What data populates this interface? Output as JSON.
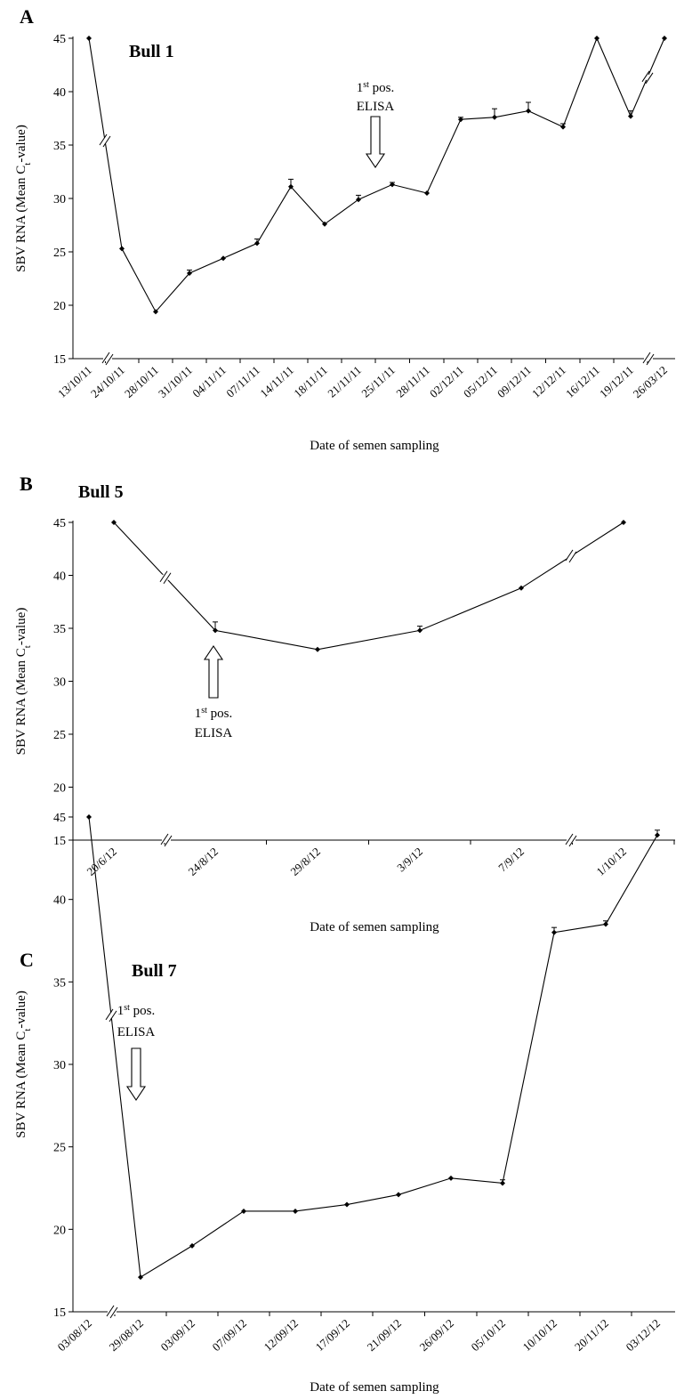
{
  "chart_data": [
    {
      "type": "line",
      "panel_label": "A",
      "title": "Bull 1",
      "xlabel": "Date of semen sampling",
      "ylabel": "SBV RNA (Mean C",
      "ylabel_sub": "t",
      "ylabel_tail": "-value)",
      "ylim": [
        15,
        45
      ],
      "yticks": [
        15,
        20,
        25,
        30,
        35,
        40,
        45
      ],
      "categories": [
        "13/10/11",
        "24/10/11",
        "28/10/11",
        "31/10/11",
        "04/11/11",
        "07/11/11",
        "14/11/11",
        "18/11/11",
        "21/11/11",
        "25/11/11",
        "28/11/11",
        "02/12/11",
        "05/12/11",
        "09/12/11",
        "12/12/11",
        "16/12/11",
        "19/12/11",
        "26/03/12"
      ],
      "values": [
        45,
        25.3,
        19.4,
        23.0,
        24.4,
        25.8,
        31.1,
        27.6,
        29.9,
        31.3,
        30.5,
        37.4,
        37.6,
        38.2,
        36.7,
        45,
        37.7,
        45
      ],
      "errors": [
        0,
        0,
        0,
        0.3,
        0,
        0.4,
        0.7,
        0,
        0.4,
        0.2,
        0,
        0.2,
        0.8,
        0.8,
        0.3,
        0,
        0.5,
        0
      ],
      "annotation": {
        "line1": "1",
        "sup": "st",
        "line1_tail": " pos.",
        "line2": "ELISA",
        "arrow": "down",
        "category": "25/11/11"
      }
    },
    {
      "type": "line",
      "panel_label": "B",
      "title": "Bull 5",
      "xlabel": "Date of semen sampling",
      "ylabel": "SBV RNA (Mean C",
      "ylabel_sub": "t",
      "ylabel_tail": "-value)",
      "ylim": [
        15,
        45
      ],
      "yticks": [
        15,
        20,
        25,
        30,
        35,
        40,
        45
      ],
      "categories": [
        "20/6/12",
        "24/8/12",
        "29/8/12",
        "3/9/12",
        "7/9/12",
        "1/10/12"
      ],
      "values": [
        45,
        34.8,
        33.0,
        34.8,
        38.8,
        45
      ],
      "errors": [
        0,
        0.8,
        0,
        0.4,
        0,
        0
      ],
      "annotation": {
        "line1": "1",
        "sup": "st",
        "line1_tail": " pos.",
        "line2": "ELISA",
        "arrow": "up",
        "category": "24/8/12"
      }
    },
    {
      "type": "line",
      "panel_label": "C",
      "title": "Bull 7",
      "xlabel": "Date of semen sampling",
      "ylabel": "SBV RNA (Mean C",
      "ylabel_sub": "t",
      "ylabel_tail": "-value)",
      "ylim": [
        15,
        45
      ],
      "yticks": [
        15,
        20,
        25,
        30,
        35,
        40,
        45
      ],
      "categories": [
        "03/08/12",
        "29/08/12",
        "03/09/12",
        "07/09/12",
        "12/09/12",
        "17/09/12",
        "21/09/12",
        "26/09/12",
        "05/10/12",
        "10/10/12",
        "20/11/12",
        "03/12/12"
      ],
      "values": [
        45,
        17.1,
        19.0,
        21.1,
        21.1,
        21.5,
        22.1,
        23.1,
        22.8,
        38.0,
        38.5,
        43.9
      ],
      "errors": [
        0,
        0,
        0,
        0,
        0,
        0,
        0,
        0,
        0.2,
        0.3,
        0.2,
        0.3
      ],
      "annotation": {
        "line1": "1",
        "sup": "st",
        "line1_tail": " pos.",
        "line2": "ELISA",
        "arrow": "down",
        "category": "29/08/12"
      }
    }
  ]
}
